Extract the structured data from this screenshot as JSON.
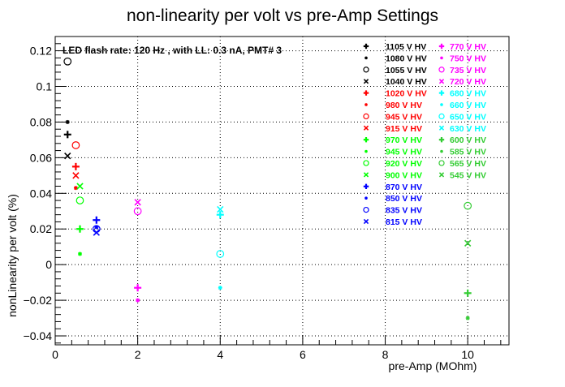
{
  "chart_data": {
    "type": "scatter",
    "title": "non-linearity per volt vs pre-Amp Settings",
    "annotation": "LED flash rate: 120 Hz , with LL: 0.3 nA, PMT# 3",
    "xlabel": "pre-Amp (MOhm)",
    "ylabel": "nonLinearity per volt (%)",
    "xlim": [
      0,
      11
    ],
    "ylim": [
      -0.045,
      0.128
    ],
    "x_ticks": [
      0,
      2,
      4,
      6,
      8,
      10
    ],
    "x_tick_labels": [
      "0",
      "2",
      "4",
      "6",
      "8",
      "10"
    ],
    "y_ticks": [
      -0.04,
      -0.02,
      0,
      0.02,
      0.04,
      0.06,
      0.08,
      0.1,
      0.12
    ],
    "y_tick_labels": [
      "−0.04",
      "−0.02",
      "0",
      "0.02",
      "0.04",
      "0.06",
      "0.08",
      "0.1",
      "0.12"
    ],
    "grid": true,
    "legend_position": "top-right",
    "series": [
      {
        "name": "1105 V HV",
        "color": "#000000",
        "marker": "plus",
        "points": [
          [
            0.3,
            0.073
          ]
        ]
      },
      {
        "name": "1080 V HV",
        "color": "#000000",
        "marker": "star",
        "points": [
          [
            0.3,
            0.08
          ]
        ]
      },
      {
        "name": "1055 V HV",
        "color": "#000000",
        "marker": "circle",
        "points": [
          [
            0.3,
            0.114
          ]
        ]
      },
      {
        "name": "1040 V HV",
        "color": "#000000",
        "marker": "cross",
        "points": [
          [
            0.3,
            0.061
          ]
        ]
      },
      {
        "name": "1020 V HV",
        "color": "#ff0000",
        "marker": "plus",
        "points": [
          [
            0.5,
            0.055
          ]
        ]
      },
      {
        "name": "980 V HV",
        "color": "#ff0000",
        "marker": "star",
        "points": [
          [
            0.5,
            0.043
          ]
        ]
      },
      {
        "name": "945 V HV",
        "color": "#ff0000",
        "marker": "circle",
        "points": [
          [
            0.5,
            0.067
          ]
        ]
      },
      {
        "name": "915 V HV",
        "color": "#ff0000",
        "marker": "cross",
        "points": [
          [
            0.5,
            0.05
          ]
        ]
      },
      {
        "name": "970 V HV",
        "color": "#00ff00",
        "marker": "plus",
        "points": [
          [
            0.6,
            0.02
          ]
        ]
      },
      {
        "name": "945 V HV",
        "color": "#00ff00",
        "marker": "star",
        "points": [
          [
            0.6,
            0.006
          ]
        ]
      },
      {
        "name": "920 V HV",
        "color": "#00ff00",
        "marker": "circle",
        "points": [
          [
            0.6,
            0.036
          ]
        ]
      },
      {
        "name": "900 V HV",
        "color": "#00ff00",
        "marker": "cross",
        "points": [
          [
            0.6,
            0.044
          ]
        ]
      },
      {
        "name": "870 V HV",
        "color": "#0000ff",
        "marker": "plus",
        "points": [
          [
            1.0,
            0.025
          ]
        ]
      },
      {
        "name": "850 V HV",
        "color": "#0000ff",
        "marker": "star",
        "points": [
          [
            1.0,
            0.021
          ]
        ]
      },
      {
        "name": "835 V HV",
        "color": "#0000ff",
        "marker": "circle",
        "points": [
          [
            1.0,
            0.02
          ]
        ]
      },
      {
        "name": "815 V HV",
        "color": "#0000ff",
        "marker": "cross",
        "points": [
          [
            1.0,
            0.018
          ]
        ]
      },
      {
        "name": "770 V HV",
        "color": "#ff00ff",
        "marker": "plus",
        "points": [
          [
            2.0,
            -0.013
          ]
        ]
      },
      {
        "name": "750 V HV",
        "color": "#ff00ff",
        "marker": "star",
        "points": [
          [
            2.0,
            -0.02
          ]
        ]
      },
      {
        "name": "735 V HV",
        "color": "#ff00ff",
        "marker": "circle",
        "points": [
          [
            2.0,
            0.03
          ]
        ]
      },
      {
        "name": "720 V HV",
        "color": "#ff00ff",
        "marker": "cross",
        "points": [
          [
            2.0,
            0.035
          ]
        ]
      },
      {
        "name": "680 V HV",
        "color": "#00ffff",
        "marker": "plus",
        "points": [
          [
            4.0,
            0.028
          ]
        ]
      },
      {
        "name": "660 V HV",
        "color": "#00ffff",
        "marker": "star",
        "points": [
          [
            4.0,
            -0.013
          ]
        ]
      },
      {
        "name": "650 V HV",
        "color": "#00ffff",
        "marker": "circle",
        "points": [
          [
            4.0,
            0.006
          ]
        ]
      },
      {
        "name": "630 V HV",
        "color": "#00ffff",
        "marker": "cross",
        "points": [
          [
            4.0,
            0.031
          ]
        ]
      },
      {
        "name": "600 V HV",
        "color": "#33cc33",
        "marker": "plus",
        "points": [
          [
            10.0,
            -0.016
          ]
        ]
      },
      {
        "name": "585 V HV",
        "color": "#33cc33",
        "marker": "star",
        "points": [
          [
            10.0,
            -0.03
          ]
        ]
      },
      {
        "name": "565 V HV",
        "color": "#33cc33",
        "marker": "circle",
        "points": [
          [
            10.0,
            0.033
          ]
        ]
      },
      {
        "name": "545 V HV",
        "color": "#33cc33",
        "marker": "cross",
        "points": [
          [
            10.0,
            0.012
          ]
        ]
      }
    ]
  }
}
